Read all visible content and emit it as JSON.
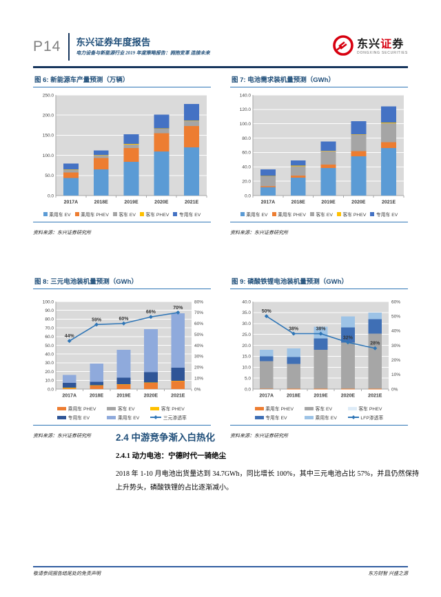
{
  "header": {
    "page_label": "P14",
    "report_title": "东兴证券年度报告",
    "report_subtitle": "电力设备与新能源行业 2019 年度策略报告：拥抱变革 连接未来",
    "logo": {
      "cn_a": "东兴",
      "cn_b": "证",
      "cn_c": "券",
      "en": "DONGXING SECURITIES"
    }
  },
  "figure_source": "资料来源：东兴证券研究所",
  "section": {
    "h2": "2.4 中游竞争渐入白热化",
    "h3": "2.4.1 动力电池：宁德时代一骑绝尘",
    "body": "2018 年 1-10 月电池出货量达到 34.7GWh，同比增长 100%，其中三元电池占比 57%，并且仍然保持上升势头，磷酸铁锂的占比逐渐减小。"
  },
  "footer": {
    "left": "敬请参阅报告结尾处的免责声明",
    "right": "东方财智 兴盛之源"
  },
  "chart_data": [
    {
      "type": "bar",
      "title": "图 6: 新能源车产量预测（万辆）",
      "categories": [
        "2017A",
        "2018E",
        "2019E",
        "2020E",
        "2021E"
      ],
      "series": [
        {
          "name": "乘用车 EV",
          "color": "#5B9BD5",
          "values": [
            44,
            65,
            84,
            110,
            120
          ]
        },
        {
          "name": "乘用车 PHEV",
          "color": "#ED7D31",
          "values": [
            13,
            28,
            34,
            45,
            53
          ]
        },
        {
          "name": "客车 EV",
          "color": "#A5A5A5",
          "values": [
            7,
            7,
            9,
            11,
            13
          ]
        },
        {
          "name": "客车 PHEV",
          "color": "#FFC000",
          "values": [
            1,
            1,
            1,
            1,
            1
          ]
        },
        {
          "name": "专用车 EV",
          "color": "#4472C4",
          "values": [
            15,
            11,
            24,
            34,
            41
          ]
        }
      ],
      "ylim": [
        0,
        250
      ],
      "ytick": 50,
      "grid": true,
      "legend_position": "bottom",
      "legend_rows": 1
    },
    {
      "type": "bar",
      "title": "图 7: 电池需求装机量预测（GWh）",
      "categories": [
        "2017A",
        "2018E",
        "2019E",
        "2020E",
        "2021E"
      ],
      "series": [
        {
          "name": "乘用车 EV",
          "color": "#5B9BD5",
          "values": [
            11.5,
            25.0,
            38.5,
            54.5,
            66.0
          ]
        },
        {
          "name": "乘用车 PHEV",
          "color": "#ED7D31",
          "values": [
            1.5,
            3.0,
            4.5,
            7.5,
            8.5
          ]
        },
        {
          "name": "客车 EV",
          "color": "#A5A5A5",
          "values": [
            14.0,
            13.0,
            19.0,
            23.0,
            26.5
          ]
        },
        {
          "name": "客车 PHEV",
          "color": "#FFC000",
          "values": [
            0.5,
            0.5,
            0.5,
            0.5,
            0.5
          ]
        },
        {
          "name": "专用车 EV",
          "color": "#4472C4",
          "values": [
            9.0,
            7.5,
            13.0,
            18.0,
            22.5
          ]
        }
      ],
      "ylim": [
        0,
        140
      ],
      "ytick": 20,
      "grid": true,
      "legend_position": "bottom",
      "legend_rows": 1
    },
    {
      "type": "bar+line",
      "title": "图 8: 三元电池装机量预测（GWh）",
      "categories": [
        "2017A",
        "2018E",
        "2019E",
        "2020E",
        "2021E"
      ],
      "series": [
        {
          "name": "乘用车 PHEV",
          "color": "#ED7D31",
          "values": [
            1.0,
            4.0,
            5.0,
            7.0,
            9.0
          ]
        },
        {
          "name": "客车 EV",
          "color": "#A5A5A5",
          "values": [
            0.3,
            0.4,
            0.4,
            0.4,
            0.4
          ]
        },
        {
          "name": "客车 PHEV",
          "color": "#FFC000",
          "values": [
            0.1,
            0.1,
            0.1,
            0.1,
            0.1
          ]
        },
        {
          "name": "专用车 EV",
          "color": "#2F5597",
          "values": [
            5.7,
            3.8,
            7.5,
            11.6,
            15.0
          ]
        },
        {
          "name": "乘用车 EV",
          "color": "#8FAADC",
          "values": [
            9.0,
            21.0,
            32.0,
            49.5,
            62.3
          ]
        }
      ],
      "ylim": [
        0,
        100
      ],
      "ytick": 10,
      "y2lim": [
        0,
        80
      ],
      "y2tick": 10,
      "line": {
        "name": "三元渗透率",
        "color": "#2E75B6",
        "axis": "right",
        "values": [
          44,
          59,
          60,
          66,
          70
        ],
        "labels": [
          "44%",
          "59%",
          "60%",
          "66%",
          "70%"
        ]
      },
      "grid": true,
      "legend_position": "bottom",
      "legend_rows": 2
    },
    {
      "type": "bar+line",
      "title": "图 9: 磷酸铁锂电池装机量预测（GWh）",
      "categories": [
        "2017A",
        "2018E",
        "2019E",
        "2020E",
        "2021E"
      ],
      "series": [
        {
          "name": "乘用车 PHEV",
          "color": "#ED7D31",
          "values": [
            0.2,
            0.1,
            0.1,
            0.1,
            0.1
          ]
        },
        {
          "name": "客车 EV",
          "color": "#A6A6A6",
          "values": [
            12.6,
            11.4,
            17.9,
            21.1,
            25.2
          ]
        },
        {
          "name": "客车 PHEV",
          "color": "#DDEBF7",
          "values": [
            0,
            0,
            0,
            0,
            0
          ]
        },
        {
          "name": "专用车 EV",
          "color": "#3F6FB5",
          "values": [
            2.2,
            3.1,
            5.2,
            7.0,
            6.7
          ]
        },
        {
          "name": "乘用车 EV",
          "color": "#9DC3E6",
          "values": [
            3.0,
            4.0,
            5.3,
            5.0,
            3.0
          ]
        }
      ],
      "ylim": [
        0,
        40
      ],
      "ytick": 5,
      "y2lim": [
        0,
        60
      ],
      "y2tick": 10,
      "line": {
        "name": "LFP渗透率",
        "color": "#2E75B6",
        "axis": "right",
        "values": [
          50,
          38,
          38,
          32,
          28
        ],
        "labels": [
          "50%",
          "38%",
          "38%",
          "32%",
          "28%"
        ]
      },
      "grid": true,
      "legend_position": "bottom",
      "legend_rows": 2
    }
  ]
}
